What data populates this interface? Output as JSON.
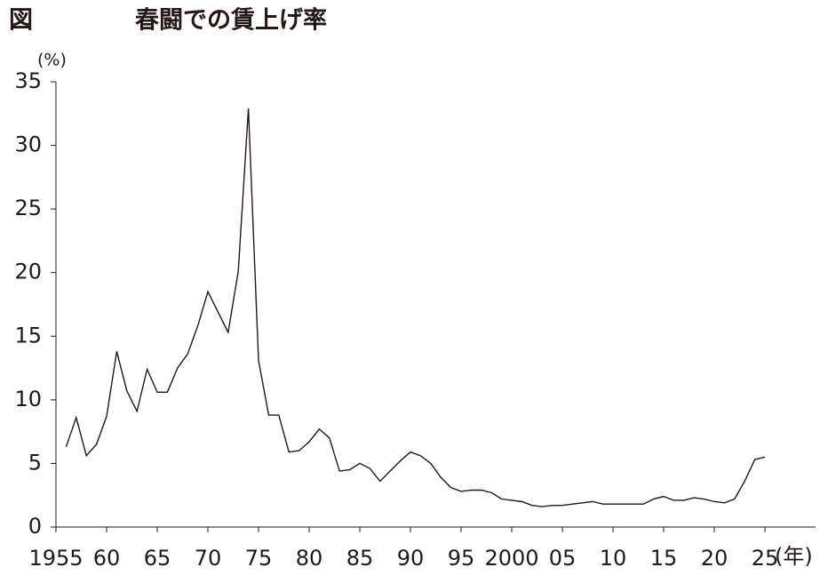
{
  "chart_data": {
    "type": "line",
    "label": "図",
    "title": "春闘での賃上げ率",
    "y_label": "(%)",
    "x_label": "(年)",
    "color": "#231815",
    "xlim": [
      1955,
      2030
    ],
    "ylim": [
      0,
      35
    ],
    "yticks": [
      0,
      5,
      10,
      15,
      20,
      25,
      30,
      35
    ],
    "xticks": [
      1955,
      {
        "value": 1960,
        "label": "60"
      },
      {
        "value": 1965,
        "label": "65"
      },
      {
        "value": 1970,
        "label": "70"
      },
      {
        "value": 1975,
        "label": "75"
      },
      {
        "value": 1980,
        "label": "80"
      },
      {
        "value": 1985,
        "label": "85"
      },
      {
        "value": 1990,
        "label": "90"
      },
      {
        "value": 1995,
        "label": "95"
      },
      2000,
      {
        "value": 2005,
        "label": "05"
      },
      {
        "value": 2010,
        "label": "10"
      },
      {
        "value": 2015,
        "label": "15"
      },
      {
        "value": 2020,
        "label": "20"
      },
      {
        "value": 2025,
        "label": "25"
      }
    ],
    "x": [
      1956,
      1957,
      1958,
      1959,
      1960,
      1961,
      1962,
      1963,
      1964,
      1965,
      1966,
      1967,
      1968,
      1969,
      1970,
      1971,
      1972,
      1973,
      1974,
      1975,
      1976,
      1977,
      1978,
      1979,
      1980,
      1981,
      1982,
      1983,
      1984,
      1985,
      1986,
      1987,
      1988,
      1989,
      1990,
      1991,
      1992,
      1993,
      1994,
      1995,
      1996,
      1997,
      1998,
      1999,
      2000,
      2001,
      2002,
      2003,
      2004,
      2005,
      2006,
      2007,
      2008,
      2009,
      2010,
      2011,
      2012,
      2013,
      2014,
      2015,
      2016,
      2017,
      2018,
      2019,
      2020,
      2021,
      2022,
      2023,
      2024,
      2025
    ],
    "values": [
      6.3,
      8.6,
      5.6,
      6.5,
      8.7,
      13.8,
      10.7,
      9.1,
      12.4,
      10.6,
      10.6,
      12.5,
      13.6,
      15.8,
      18.5,
      16.9,
      15.3,
      20.1,
      32.9,
      13.1,
      8.8,
      8.8,
      5.9,
      6.0,
      6.7,
      7.7,
      7.0,
      4.4,
      4.5,
      5.0,
      4.6,
      3.6,
      4.4,
      5.2,
      5.9,
      5.6,
      5.0,
      3.9,
      3.1,
      2.8,
      2.9,
      2.9,
      2.7,
      2.2,
      2.1,
      2.0,
      1.7,
      1.6,
      1.7,
      1.7,
      1.8,
      1.9,
      2.0,
      1.8,
      1.8,
      1.8,
      1.8,
      1.8,
      2.2,
      2.4,
      2.1,
      2.1,
      2.3,
      2.2,
      2.0,
      1.9,
      2.2,
      3.6,
      5.3,
      5.5
    ]
  }
}
